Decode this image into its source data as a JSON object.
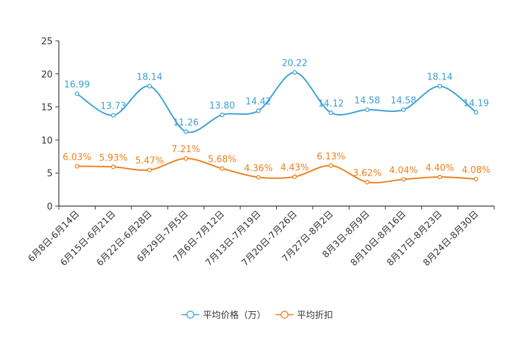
{
  "chart_data": {
    "type": "line",
    "title": "",
    "xlabel": "",
    "ylabel": "",
    "ylim": [
      0,
      25
    ],
    "yticks": [
      0,
      5,
      10,
      15,
      20,
      25
    ],
    "grid": false,
    "legend_position": "bottom-center",
    "categories": [
      "6月8日-6月14日",
      "6月15日-6月21日",
      "6月22日-6月28日",
      "6月29日-7月5日",
      "7月6日-7月12日",
      "7月13日-7月19日",
      "7月20日-7月26日",
      "7月27日-8月2日",
      "8月3日-8月9日",
      "8月10日-8月16日",
      "8月17日-8月23日",
      "8月24日-8月30日"
    ],
    "series": [
      {
        "name": "平均价格（万）",
        "color": "#3aa0d4",
        "values": [
          16.99,
          13.73,
          18.14,
          11.26,
          13.8,
          14.42,
          20.22,
          14.12,
          14.58,
          14.58,
          18.14,
          14.19
        ],
        "labels": [
          "16.99",
          "13.73",
          "18.14",
          "11.26",
          "13.80",
          "14.42",
          "20.22",
          "14.12",
          "14.58",
          "14.58",
          "18.14",
          "14.19"
        ]
      },
      {
        "name": "平均折扣",
        "color": "#f07f1c",
        "values": [
          6.03,
          5.93,
          5.47,
          7.21,
          5.68,
          4.36,
          4.43,
          6.13,
          3.62,
          4.04,
          4.4,
          4.08
        ],
        "labels": [
          "6.03%",
          "5.93%",
          "5.47%",
          "7.21%",
          "5.68%",
          "4.36%",
          "4.43%",
          "6.13%",
          "3.62%",
          "4.04%",
          "4.40%",
          "4.08%"
        ]
      }
    ]
  }
}
